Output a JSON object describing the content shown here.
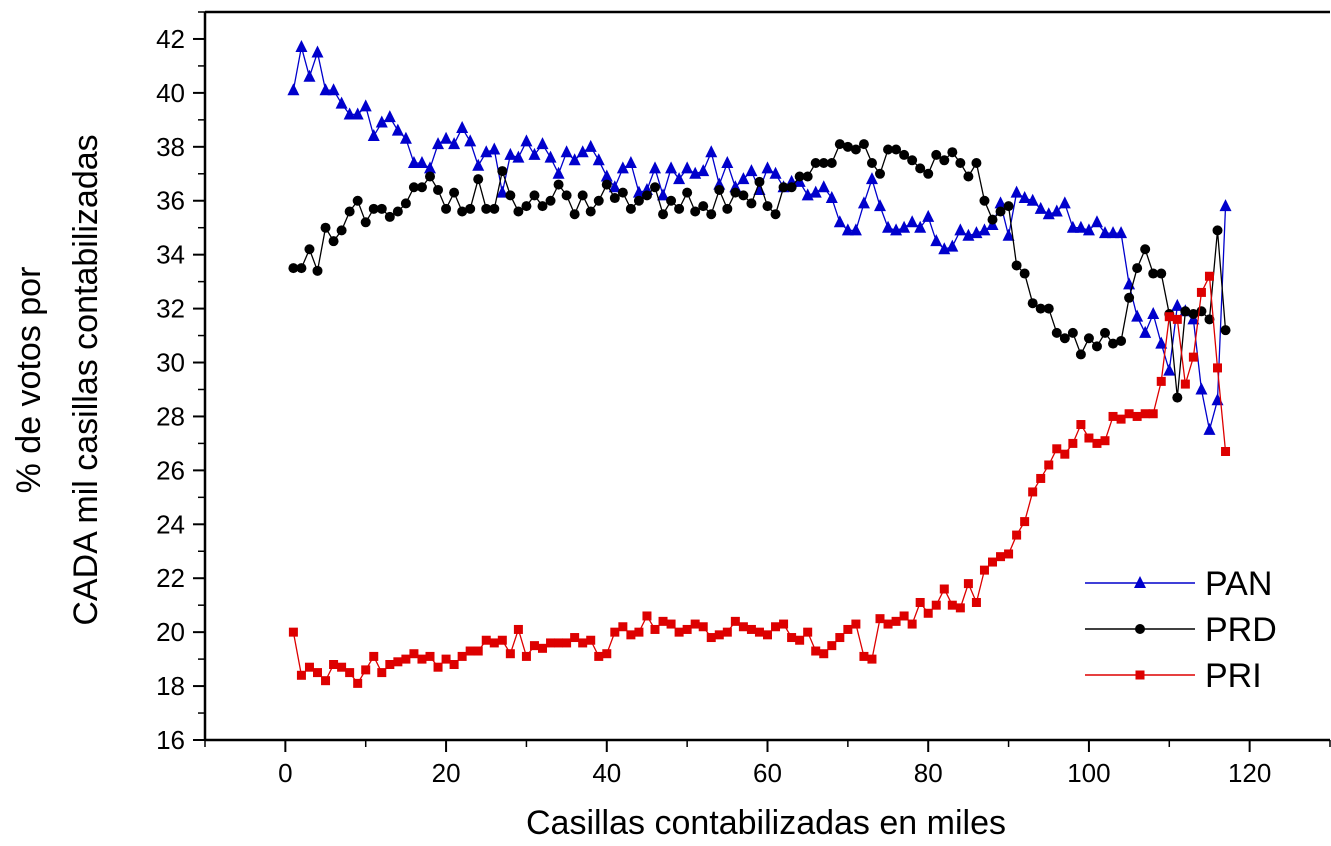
{
  "chart_data": {
    "type": "line",
    "xlabel": "Casillas contabilizadas en miles",
    "ylabel_lines": [
      "% de votos por",
      "CADA mil casillas contabilizadas"
    ],
    "xlim": [
      -10,
      130
    ],
    "ylim": [
      16,
      43
    ],
    "xticks": [
      0,
      20,
      40,
      60,
      80,
      100,
      120
    ],
    "yticks": [
      16,
      18,
      20,
      22,
      24,
      26,
      28,
      30,
      32,
      34,
      36,
      38,
      40,
      42
    ],
    "legend_position": "bottom-right",
    "grid": false,
    "x": [
      1,
      2,
      3,
      4,
      5,
      6,
      7,
      8,
      9,
      10,
      11,
      12,
      13,
      14,
      15,
      16,
      17,
      18,
      19,
      20,
      21,
      22,
      23,
      24,
      25,
      26,
      27,
      28,
      29,
      30,
      31,
      32,
      33,
      34,
      35,
      36,
      37,
      38,
      39,
      40,
      41,
      42,
      43,
      44,
      45,
      46,
      47,
      48,
      49,
      50,
      51,
      52,
      53,
      54,
      55,
      56,
      57,
      58,
      59,
      60,
      61,
      62,
      63,
      64,
      65,
      66,
      67,
      68,
      69,
      70,
      71,
      72,
      73,
      74,
      75,
      76,
      77,
      78,
      79,
      80,
      81,
      82,
      83,
      84,
      85,
      86,
      87,
      88,
      89,
      90,
      91,
      92,
      93,
      94,
      95,
      96,
      97,
      98,
      99,
      100,
      101,
      102,
      103,
      104,
      105,
      106,
      107,
      108,
      109,
      110,
      111,
      112,
      113,
      114,
      115,
      116,
      117
    ],
    "series": [
      {
        "name": "PAN",
        "color": "#0000cc",
        "marker": "triangle",
        "values": [
          40.1,
          41.7,
          40.6,
          41.5,
          40.1,
          40.1,
          39.6,
          39.2,
          39.2,
          39.5,
          38.4,
          38.9,
          39.1,
          38.6,
          38.3,
          37.4,
          37.4,
          37.2,
          38.1,
          38.3,
          38.1,
          38.7,
          38.2,
          37.3,
          37.8,
          37.9,
          36.3,
          37.7,
          37.6,
          38.2,
          37.7,
          38.1,
          37.6,
          37.0,
          37.8,
          37.5,
          37.8,
          38.0,
          37.5,
          36.9,
          36.5,
          37.2,
          37.4,
          36.3,
          36.4,
          37.2,
          36.2,
          37.2,
          36.8,
          37.2,
          37.0,
          37.1,
          37.8,
          36.6,
          37.4,
          36.5,
          36.8,
          37.1,
          36.4,
          37.2,
          37.0,
          36.5,
          36.7,
          36.7,
          36.2,
          36.3,
          36.5,
          36.1,
          35.2,
          34.9,
          34.9,
          35.9,
          36.8,
          35.8,
          35.0,
          34.9,
          35.0,
          35.2,
          35.0,
          35.4,
          34.5,
          34.2,
          34.3,
          34.9,
          34.7,
          34.8,
          34.9,
          35.1,
          35.9,
          34.7,
          36.3,
          36.1,
          36.0,
          35.7,
          35.5,
          35.6,
          35.9,
          35.0,
          35.0,
          34.9,
          35.2,
          34.8,
          34.8,
          34.8,
          32.9,
          31.7,
          31.1,
          31.8,
          30.7,
          29.7,
          32.1,
          31.9,
          31.6,
          29.0,
          27.5,
          28.6,
          35.8
        ]
      },
      {
        "name": "PRD",
        "color": "#000000",
        "marker": "circle",
        "values": [
          33.5,
          33.5,
          34.2,
          33.4,
          35.0,
          34.5,
          34.9,
          35.6,
          36.0,
          35.2,
          35.7,
          35.7,
          35.4,
          35.6,
          35.9,
          36.5,
          36.5,
          36.9,
          36.4,
          35.7,
          36.3,
          35.6,
          35.7,
          36.8,
          35.7,
          35.7,
          37.1,
          36.2,
          35.6,
          35.8,
          36.2,
          35.8,
          36.0,
          36.6,
          36.2,
          35.5,
          36.2,
          35.6,
          36.0,
          36.6,
          36.1,
          36.3,
          35.7,
          36.0,
          36.2,
          36.5,
          35.5,
          36.0,
          35.7,
          36.3,
          35.6,
          35.8,
          35.5,
          36.4,
          35.7,
          36.3,
          36.2,
          35.9,
          36.7,
          35.8,
          35.5,
          36.5,
          36.5,
          36.9,
          36.9,
          37.4,
          37.4,
          37.4,
          38.1,
          38.0,
          37.9,
          38.1,
          37.4,
          37.0,
          37.9,
          37.9,
          37.7,
          37.5,
          37.2,
          37.0,
          37.7,
          37.5,
          37.8,
          37.4,
          36.9,
          37.4,
          36.0,
          35.3,
          35.6,
          35.8,
          33.6,
          33.3,
          32.2,
          32.0,
          32.0,
          31.1,
          30.9,
          31.1,
          30.3,
          30.9,
          30.6,
          31.1,
          30.7,
          30.8,
          32.4,
          33.5,
          34.2,
          33.3,
          33.3,
          31.8,
          28.7,
          31.9,
          31.8,
          31.9,
          31.6,
          34.9,
          31.2
        ]
      },
      {
        "name": "PRI",
        "color": "#dd0000",
        "marker": "square",
        "values": [
          20.0,
          18.4,
          18.7,
          18.5,
          18.2,
          18.8,
          18.7,
          18.5,
          18.1,
          18.6,
          19.1,
          18.5,
          18.8,
          18.9,
          19.0,
          19.2,
          19.0,
          19.1,
          18.7,
          19.0,
          18.8,
          19.1,
          19.3,
          19.3,
          19.7,
          19.6,
          19.7,
          19.2,
          20.1,
          19.1,
          19.5,
          19.4,
          19.6,
          19.6,
          19.6,
          19.8,
          19.6,
          19.7,
          19.1,
          19.2,
          20.0,
          20.2,
          19.9,
          20.0,
          20.6,
          20.1,
          20.4,
          20.3,
          20.0,
          20.1,
          20.3,
          20.2,
          19.8,
          19.9,
          20.0,
          20.4,
          20.2,
          20.1,
          20.0,
          19.9,
          20.2,
          20.3,
          19.8,
          19.7,
          20.0,
          19.3,
          19.2,
          19.5,
          19.8,
          20.1,
          20.3,
          19.1,
          19.0,
          20.5,
          20.3,
          20.4,
          20.6,
          20.3,
          21.1,
          20.7,
          21.0,
          21.6,
          21.0,
          20.9,
          21.8,
          21.1,
          22.3,
          22.6,
          22.8,
          22.9,
          23.6,
          24.1,
          25.2,
          25.7,
          26.2,
          26.8,
          26.6,
          27.0,
          27.7,
          27.2,
          27.0,
          27.1,
          28.0,
          27.9,
          28.1,
          28.0,
          28.1,
          28.1,
          29.3,
          31.7,
          31.6,
          29.2,
          30.2,
          32.6,
          33.2,
          29.8,
          26.7
        ]
      }
    ]
  }
}
